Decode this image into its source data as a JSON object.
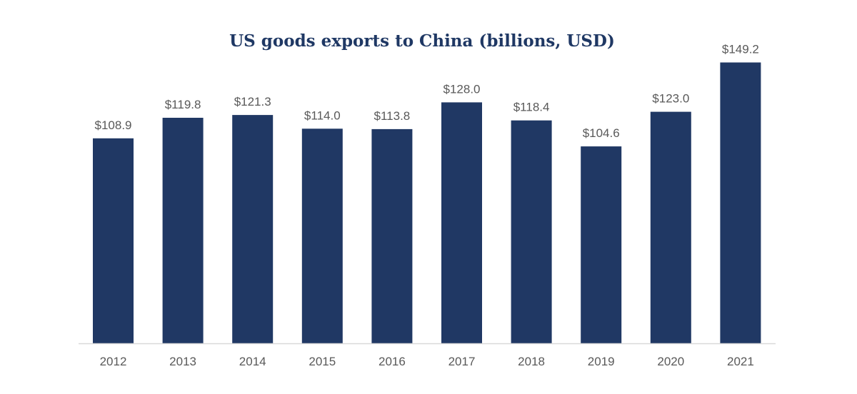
{
  "chart_data": {
    "type": "bar",
    "title": "US goods exports to China (billions, USD)",
    "categories": [
      "2012",
      "2013",
      "2014",
      "2015",
      "2016",
      "2017",
      "2018",
      "2019",
      "2020",
      "2021"
    ],
    "values": [
      108.9,
      119.8,
      121.3,
      114.0,
      113.8,
      128.0,
      118.4,
      104.6,
      123.0,
      149.2
    ],
    "data_labels": [
      "$108.9",
      "$119.8",
      "$121.3",
      "$114.0",
      "$113.8",
      "$128.0",
      "$118.4",
      "$104.6",
      "$123.0",
      "$149.2"
    ],
    "xlabel": "",
    "ylabel": "",
    "ylim": [
      0,
      150
    ],
    "grid": false,
    "legend": "none",
    "bar_color": "#203864",
    "axis_color": "#d9d9d9",
    "label_color": "#595959",
    "title_color": "#1f3864"
  }
}
